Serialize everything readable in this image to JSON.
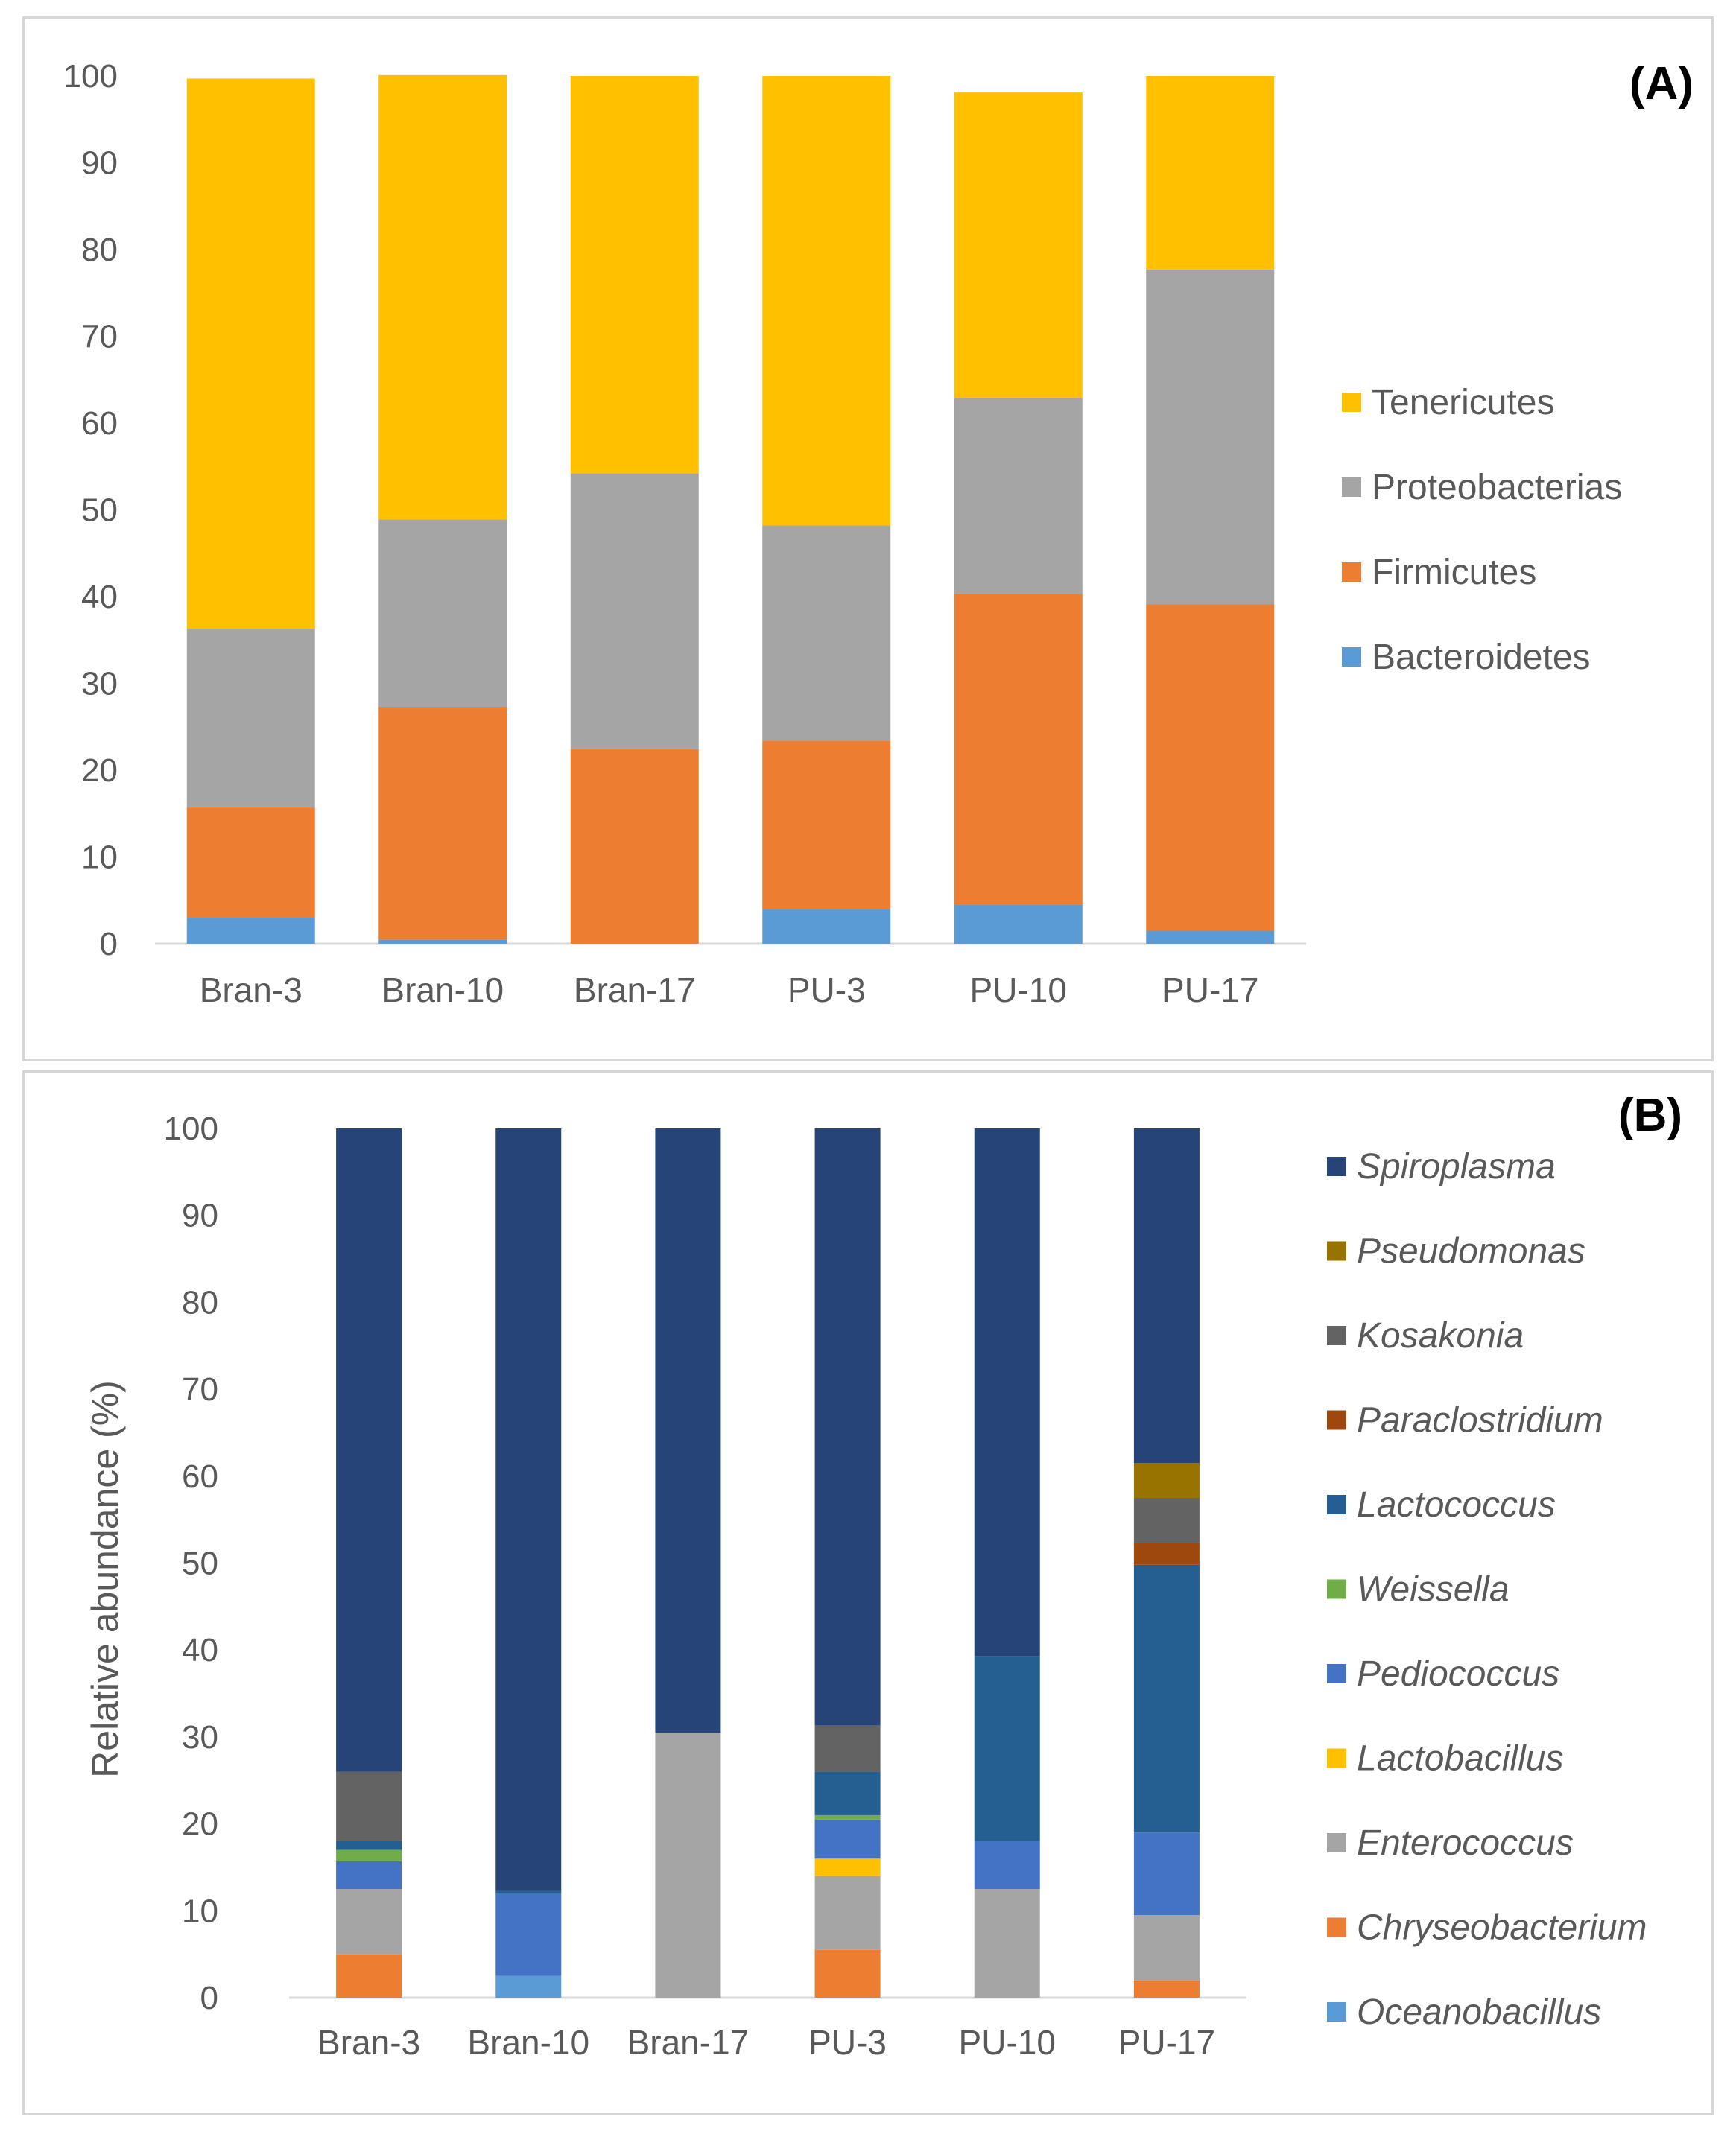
{
  "chart_data": [
    {
      "type": "bar",
      "stacked": true,
      "panel_label": "(A)",
      "title": "",
      "xlabel": "",
      "ylabel": "",
      "ylim": [
        0,
        100
      ],
      "yticks": [
        0,
        10,
        20,
        30,
        40,
        50,
        60,
        70,
        80,
        90,
        100
      ],
      "grid": false,
      "legend_position": "right",
      "categories": [
        "Bran-3",
        "Bran-10",
        "Bran-17",
        "PU-3",
        "PU-10",
        "PU-17"
      ],
      "series": [
        {
          "name": "Bacteroidetes",
          "color": "#5B9BD5",
          "values": [
            3,
            0.5,
            0,
            4,
            4.5,
            1.5
          ]
        },
        {
          "name": "Firmicutes",
          "color": "#ED7D31",
          "values": [
            12.7,
            26.8,
            22.4,
            19.4,
            35.8,
            37.6
          ]
        },
        {
          "name": "Proteobacterias",
          "color": "#A5A5A5",
          "values": [
            20.6,
            21.6,
            31.8,
            24.8,
            22.6,
            38.6
          ]
        },
        {
          "name": "Tenericutes",
          "color": "#FFC000",
          "values": [
            63.4,
            51.2,
            45.8,
            51.8,
            35.2,
            22.3
          ]
        }
      ]
    },
    {
      "type": "bar",
      "stacked": true,
      "panel_label": "(B)",
      "title": "",
      "xlabel": "",
      "ylabel": "Relative abundance (%)",
      "ylim": [
        0,
        100
      ],
      "yticks": [
        0,
        10,
        20,
        30,
        40,
        50,
        60,
        70,
        80,
        90,
        100
      ],
      "grid": false,
      "legend_position": "right",
      "categories": [
        "Bran-3",
        "Bran-10",
        "Bran-17",
        "PU-3",
        "PU-10",
        "PU-17"
      ],
      "series": [
        {
          "name": "Oceanobacillus",
          "color": "#5B9BD5",
          "values": [
            0,
            2.5,
            0,
            0,
            0,
            0
          ]
        },
        {
          "name": "Chryseobacterium",
          "color": "#ED7D31",
          "values": [
            5,
            0,
            0,
            5.5,
            0,
            2
          ]
        },
        {
          "name": "Enterococcus",
          "color": "#A5A5A5",
          "values": [
            7.5,
            0,
            30.5,
            8.5,
            12.5,
            7.5
          ]
        },
        {
          "name": "Lactobacillus",
          "color": "#FFC000",
          "values": [
            0,
            0,
            0,
            2,
            0,
            0
          ]
        },
        {
          "name": "Pediococcus",
          "color": "#4472C4",
          "values": [
            3.2,
            9.5,
            0,
            4.5,
            5.5,
            9.5
          ]
        },
        {
          "name": "Weissella",
          "color": "#70AD47",
          "values": [
            1.3,
            0,
            0,
            0.5,
            0,
            0
          ]
        },
        {
          "name": "Lactococcus",
          "color": "#255E91",
          "values": [
            1,
            0.3,
            0,
            5,
            21.3,
            30.8
          ]
        },
        {
          "name": "Paraclostridium",
          "color": "#9E480E",
          "values": [
            0,
            0,
            0,
            0,
            0,
            2.5
          ]
        },
        {
          "name": "Kosakonia",
          "color": "#636363",
          "values": [
            8,
            0,
            0,
            5.3,
            0,
            5.2
          ]
        },
        {
          "name": "Pseudomonas",
          "color": "#997300",
          "values": [
            0,
            0,
            0,
            0,
            0,
            4
          ]
        },
        {
          "name": "Spiroplasma",
          "color": "#264478",
          "values": [
            74,
            87.7,
            69.5,
            68.7,
            60.7,
            38.5
          ]
        }
      ]
    }
  ]
}
